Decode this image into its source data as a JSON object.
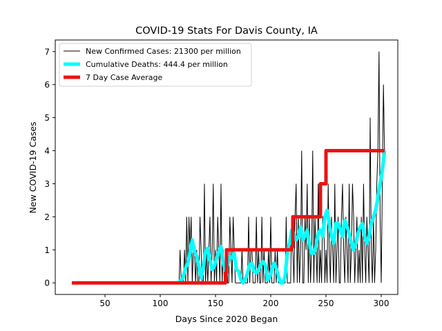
{
  "chart_data": {
    "type": "line",
    "title": "COVID-19 Stats For Davis County, IA",
    "xlabel": "Days Since 2020 Began",
    "ylabel": "New COVID-19 Cases",
    "xlim": [
      5,
      315
    ],
    "ylim": [
      -0.35,
      7.35
    ],
    "xticks": [
      50,
      100,
      150,
      200,
      250,
      300
    ],
    "yticks": [
      0,
      1,
      2,
      3,
      4,
      5,
      6,
      7
    ],
    "legend_position": "top-left",
    "series": [
      {
        "name": "New Confirmed Cases: 21300 per million",
        "color": "#000000",
        "x": [
          117,
          118,
          119,
          120,
          121,
          122,
          123,
          124,
          125,
          126,
          127,
          128,
          129,
          130,
          131,
          132,
          133,
          134,
          135,
          136,
          137,
          138,
          139,
          140,
          141,
          142,
          143,
          144,
          145,
          146,
          147,
          148,
          149,
          150,
          151,
          152,
          153,
          154,
          155,
          156,
          157,
          158,
          159,
          160,
          161,
          162,
          163,
          164,
          165,
          166,
          167,
          168,
          169,
          170,
          171,
          172,
          173,
          174,
          175,
          176,
          177,
          178,
          179,
          180,
          181,
          182,
          183,
          184,
          185,
          186,
          187,
          188,
          189,
          190,
          191,
          192,
          193,
          194,
          195,
          196,
          197,
          198,
          199,
          200,
          201,
          202,
          203,
          204,
          205,
          206,
          207,
          208,
          209,
          210,
          211,
          212,
          213,
          214,
          215,
          216,
          217,
          218,
          219,
          220,
          221,
          222,
          223,
          224,
          225,
          226,
          227,
          228,
          229,
          230,
          231,
          232,
          233,
          234,
          235,
          236,
          237,
          238,
          239,
          240,
          241,
          242,
          243,
          244,
          245,
          246,
          247,
          248,
          249,
          250,
          251,
          252,
          253,
          254,
          255,
          256,
          257,
          258,
          259,
          260,
          261,
          262,
          263,
          264,
          265,
          266,
          267,
          268,
          269,
          270,
          271,
          272,
          273,
          274,
          275,
          276,
          277,
          278,
          279,
          280,
          281,
          282,
          283,
          284,
          285,
          286,
          287,
          288,
          289,
          290,
          291,
          292,
          293,
          294,
          295,
          296,
          297,
          298,
          299,
          300,
          301,
          302,
          303
        ],
        "values": [
          0,
          1,
          0,
          0,
          0,
          1,
          0,
          2,
          0,
          2,
          1,
          2,
          0,
          1,
          1,
          0,
          1,
          0,
          0,
          2,
          1,
          0,
          0,
          3,
          0,
          1,
          0,
          1,
          2,
          0,
          1,
          3,
          0,
          1,
          0,
          2,
          1,
          0,
          3,
          0,
          1,
          0,
          0,
          1,
          0,
          0,
          2,
          1,
          0,
          2,
          1,
          0,
          0,
          0,
          0,
          0,
          0,
          1,
          0,
          0,
          0,
          0,
          0,
          2,
          0,
          1,
          1,
          0,
          0,
          0,
          2,
          0,
          1,
          0,
          0,
          2,
          0,
          1,
          0,
          0,
          0,
          1,
          0,
          2,
          0,
          0,
          0,
          1,
          0,
          1,
          0,
          0,
          0,
          0,
          0,
          0,
          0,
          2,
          0,
          0,
          0,
          0,
          2,
          1,
          0,
          2,
          3,
          0,
          2,
          0,
          1,
          4,
          0,
          0,
          2,
          1,
          3,
          0,
          2,
          0,
          1,
          4,
          0,
          2,
          1,
          0,
          3,
          0,
          1,
          0,
          2,
          2,
          0,
          1,
          0,
          3,
          1,
          0,
          2,
          1,
          0,
          3,
          0,
          1,
          2,
          0,
          0,
          2,
          3,
          1,
          0,
          2,
          1,
          0,
          3,
          0,
          1,
          3,
          2,
          0,
          1,
          2,
          0,
          1,
          0,
          2,
          0,
          3,
          1,
          0,
          2,
          1,
          0,
          5,
          1,
          0,
          2,
          0,
          1,
          3,
          4,
          7,
          2,
          0,
          3,
          6,
          4
        ],
        "line_width": 1
      },
      {
        "name": "Cumulative Deaths: 444.4 per million",
        "color": "#00ffff",
        "x": [
          117,
          119,
          121,
          123,
          125,
          127,
          129,
          131,
          133,
          135,
          137,
          139,
          141,
          143,
          145,
          147,
          149,
          151,
          153,
          155,
          157,
          159,
          161,
          163,
          165,
          167,
          169,
          171,
          173,
          175,
          177,
          179,
          181,
          183,
          185,
          187,
          189,
          191,
          193,
          195,
          197,
          199,
          201,
          203,
          205,
          207,
          209,
          211,
          213,
          215,
          217,
          219,
          221,
          223,
          225,
          227,
          229,
          231,
          233,
          235,
          237,
          239,
          241,
          243,
          245,
          247,
          249,
          251,
          253,
          255,
          257,
          259,
          261,
          263,
          265,
          267,
          269,
          271,
          273,
          275,
          277,
          279,
          281,
          283,
          285,
          287,
          289,
          291,
          293,
          295,
          297,
          299,
          301,
          303
        ],
        "values": [
          0.1,
          0.05,
          0.2,
          0.45,
          0.6,
          0.9,
          1.3,
          0.95,
          0.8,
          0.5,
          0.15,
          0.45,
          0.95,
          1.05,
          0.7,
          0.4,
          0.5,
          0.75,
          0.95,
          1.1,
          0.6,
          0.35,
          0.55,
          0.8,
          0.75,
          0.9,
          0.4,
          0.35,
          0.1,
          0.0,
          0.1,
          0.3,
          0.55,
          0.6,
          0.35,
          0.3,
          0.4,
          0.55,
          0.65,
          0.55,
          0.1,
          0.15,
          0.4,
          0.6,
          0.45,
          0.2,
          0.0,
          0.0,
          0.2,
          0.9,
          1.2,
          1.6,
          1.5,
          1.3,
          1.4,
          1.7,
          1.3,
          1.4,
          1.6,
          1.2,
          0.9,
          0.9,
          1.1,
          1.5,
          1.6,
          1.4,
          2.0,
          2.2,
          1.8,
          1.4,
          1.2,
          1.8,
          1.8,
          1.6,
          1.4,
          1.9,
          1.7,
          1.5,
          1.2,
          1.0,
          1.2,
          1.5,
          1.7,
          1.8,
          1.4,
          1.2,
          1.4,
          1.8,
          2.0,
          2.2,
          2.6,
          3.0,
          3.4,
          4.0
        ],
        "line_width": 5
      },
      {
        "name": "7 Day Case Average",
        "color": "#ee1111",
        "x": [
          20,
          159,
          159,
          160,
          160,
          219,
          219,
          220,
          220,
          245,
          245,
          248,
          248,
          250,
          250,
          303
        ],
        "values": [
          0,
          0,
          0.3,
          0.3,
          1,
          1,
          1.1,
          1.1,
          2,
          2,
          3,
          3,
          3,
          3,
          4,
          4
        ],
        "line_width": 5
      }
    ]
  }
}
